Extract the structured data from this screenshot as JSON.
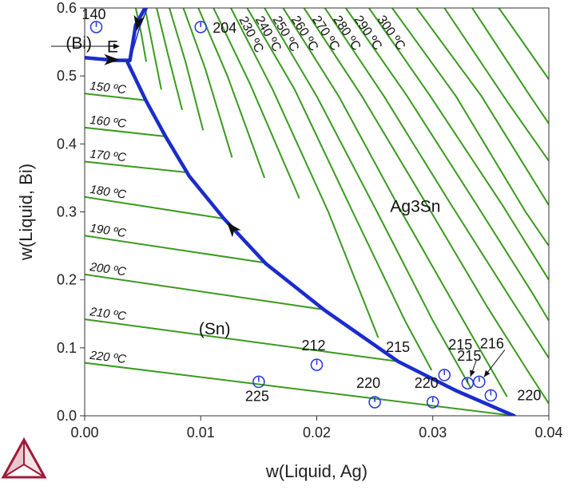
{
  "chart_data": {
    "type": "line",
    "title": "",
    "xlabel": "w(Liquid, Ag)",
    "ylabel": "w(Liquid, Bi)",
    "xlim": [
      0,
      0.04
    ],
    "ylim": [
      0,
      0.6
    ],
    "x_ticks": [
      "0.00",
      "0.01",
      "0.02",
      "0.03",
      "0.04"
    ],
    "y_ticks": [
      "0.0",
      "0.1",
      "0.2",
      "0.3",
      "0.4",
      "0.5",
      "0.6"
    ],
    "grid": false,
    "colors": {
      "isotherm": "#3a9a1e",
      "boundary": "#1a2ccc",
      "point": "#2233dd",
      "logo": "#9e1b3a"
    },
    "regions": [
      {
        "label": "(Bi)",
        "x": -0.0005,
        "y": 0.54
      },
      {
        "label": "E",
        "x": 0.0024,
        "y": 0.535
      },
      {
        "label": "Ag3Sn",
        "x": 0.0285,
        "y": 0.3
      },
      {
        "label": "(Sn)",
        "x": 0.0112,
        "y": 0.12
      }
    ],
    "low_isotherms": [
      {
        "label": "150 ºC",
        "points": [
          [
            0.0,
            0.474
          ],
          [
            0.0053,
            0.464
          ]
        ]
      },
      {
        "label": "160 ºC",
        "points": [
          [
            0.0,
            0.424
          ],
          [
            0.007,
            0.411
          ]
        ]
      },
      {
        "label": "170 ºC",
        "points": [
          [
            0.0,
            0.374
          ],
          [
            0.0089,
            0.358
          ]
        ]
      },
      {
        "label": "180 ºC",
        "points": [
          [
            0.0,
            0.322
          ],
          [
            0.012,
            0.29
          ]
        ]
      },
      {
        "label": "190 ºC",
        "points": [
          [
            0.0,
            0.265
          ],
          [
            0.0156,
            0.225
          ]
        ]
      },
      {
        "label": "200 ºC",
        "points": [
          [
            0.0,
            0.208
          ],
          [
            0.0207,
            0.156
          ]
        ]
      },
      {
        "label": "210 ºC",
        "points": [
          [
            0.0,
            0.142
          ],
          [
            0.027,
            0.08
          ]
        ]
      },
      {
        "label": "220 ºC",
        "points": [
          [
            0.0,
            0.078
          ],
          [
            0.037,
            0.0
          ]
        ]
      }
    ],
    "ag3sn_isotherms": [
      {
        "label": "",
        "points": [
          [
            0.0044,
            0.6
          ],
          [
            0.0049,
            0.56
          ],
          [
            0.0053,
            0.521
          ]
        ]
      },
      {
        "label": "",
        "points": [
          [
            0.0052,
            0.6
          ],
          [
            0.0059,
            0.54
          ],
          [
            0.0066,
            0.48
          ]
        ]
      },
      {
        "label": "",
        "points": [
          [
            0.0062,
            0.6
          ],
          [
            0.0072,
            0.53
          ],
          [
            0.0084,
            0.45
          ]
        ]
      },
      {
        "label": "",
        "points": [
          [
            0.0073,
            0.6
          ],
          [
            0.0087,
            0.52
          ],
          [
            0.0102,
            0.42
          ]
        ]
      },
      {
        "label": "",
        "points": [
          [
            0.0085,
            0.6
          ],
          [
            0.0104,
            0.51
          ],
          [
            0.0127,
            0.38
          ]
        ]
      },
      {
        "label": "",
        "points": [
          [
            0.0098,
            0.6
          ],
          [
            0.0123,
            0.5
          ],
          [
            0.0155,
            0.35
          ]
        ]
      },
      {
        "label": "",
        "points": [
          [
            0.0111,
            0.6
          ],
          [
            0.0142,
            0.49
          ],
          [
            0.0185,
            0.32
          ]
        ]
      },
      {
        "label": "230 ºC",
        "points": [
          [
            0.0126,
            0.6
          ],
          [
            0.0162,
            0.48
          ],
          [
            0.021,
            0.3
          ],
          [
            0.0253,
            0.115
          ]
        ]
      },
      {
        "label": "240 ºC",
        "points": [
          [
            0.014,
            0.6
          ],
          [
            0.0181,
            0.48
          ],
          [
            0.0231,
            0.3
          ],
          [
            0.0276,
            0.14
          ],
          [
            0.0299,
            0.067
          ]
        ]
      },
      {
        "label": "250 ºC",
        "points": [
          [
            0.0155,
            0.6
          ],
          [
            0.02,
            0.47
          ],
          [
            0.0252,
            0.3
          ],
          [
            0.03,
            0.14
          ],
          [
            0.0333,
            0.04
          ]
        ]
      },
      {
        "label": "260 ºC",
        "points": [
          [
            0.0171,
            0.6
          ],
          [
            0.0219,
            0.47
          ],
          [
            0.0273,
            0.3
          ],
          [
            0.0323,
            0.15
          ],
          [
            0.0355,
            0.055
          ],
          [
            0.0364,
            0.028
          ]
        ]
      },
      {
        "label": "270 ºC",
        "points": [
          [
            0.0189,
            0.6
          ],
          [
            0.0239,
            0.47
          ],
          [
            0.0295,
            0.31
          ],
          [
            0.0347,
            0.16
          ],
          [
            0.0384,
            0.06
          ],
          [
            0.04,
            0.018
          ]
        ]
      },
      {
        "label": "280 ºC",
        "points": [
          [
            0.0207,
            0.6
          ],
          [
            0.0258,
            0.47
          ],
          [
            0.0316,
            0.31
          ],
          [
            0.0368,
            0.17
          ],
          [
            0.04,
            0.085
          ]
        ]
      },
      {
        "label": "290 ºC",
        "points": [
          [
            0.0225,
            0.6
          ],
          [
            0.0278,
            0.47
          ],
          [
            0.0338,
            0.31
          ],
          [
            0.0386,
            0.18
          ],
          [
            0.04,
            0.14
          ]
        ]
      },
      {
        "label": "300 ºC",
        "points": [
          [
            0.0245,
            0.6
          ],
          [
            0.0298,
            0.47
          ],
          [
            0.036,
            0.31
          ],
          [
            0.04,
            0.2
          ]
        ]
      },
      {
        "label": "",
        "points": [
          [
            0.0265,
            0.6
          ],
          [
            0.032,
            0.47
          ],
          [
            0.038,
            0.3
          ],
          [
            0.04,
            0.25
          ]
        ]
      },
      {
        "label": "",
        "points": [
          [
            0.0286,
            0.6
          ],
          [
            0.0342,
            0.47
          ],
          [
            0.04,
            0.31
          ]
        ]
      },
      {
        "label": "",
        "points": [
          [
            0.031,
            0.6
          ],
          [
            0.0365,
            0.46
          ],
          [
            0.04,
            0.375
          ]
        ]
      },
      {
        "label": "",
        "points": [
          [
            0.0334,
            0.6
          ],
          [
            0.0384,
            0.47
          ],
          [
            0.04,
            0.43
          ]
        ]
      },
      {
        "label": "",
        "points": [
          [
            0.0357,
            0.6
          ],
          [
            0.04,
            0.495
          ]
        ]
      }
    ],
    "boundaries": [
      {
        "name": "L/(Bi)+(Sn)",
        "points": [
          [
            0.0,
            0.527
          ],
          [
            0.0025,
            0.523
          ],
          [
            0.0039,
            0.523
          ]
        ]
      },
      {
        "name": "L/(Bi)+Ag3Sn",
        "points": [
          [
            0.0039,
            0.523
          ],
          [
            0.0044,
            0.575
          ],
          [
            0.0052,
            0.6
          ]
        ]
      },
      {
        "name": "L/(Sn)+Ag3Sn",
        "points": [
          [
            0.0037,
            0.52
          ],
          [
            0.0053,
            0.463
          ],
          [
            0.007,
            0.41
          ],
          [
            0.009,
            0.353
          ],
          [
            0.012,
            0.29
          ],
          [
            0.0156,
            0.224
          ],
          [
            0.0207,
            0.155
          ],
          [
            0.027,
            0.08
          ],
          [
            0.032,
            0.037
          ],
          [
            0.037,
            0.0
          ]
        ]
      }
    ],
    "boundary_thin": [
      [
        0.0039,
        0.523
      ],
      [
        0.0047,
        0.57
      ],
      [
        0.0054,
        0.6
      ]
    ],
    "arrows": [
      {
        "x": 0.0023,
        "y": 0.524,
        "dir": "right"
      },
      {
        "x": 0.0046,
        "y": 0.578,
        "dir": "down"
      },
      {
        "x": 0.0127,
        "y": 0.276,
        "dir": "up-left"
      }
    ],
    "points": [
      {
        "label": "140",
        "x": 0.001,
        "y": 0.572
      },
      {
        "label": "204",
        "x": 0.01,
        "y": 0.572
      },
      {
        "label": "225",
        "x": 0.015,
        "y": 0.05
      },
      {
        "label": "212",
        "x": 0.02,
        "y": 0.075
      },
      {
        "label": "220",
        "x": 0.025,
        "y": 0.02
      },
      {
        "label": "220",
        "x": 0.03,
        "y": 0.02
      },
      {
        "label": "215",
        "x": 0.031,
        "y": 0.06
      },
      {
        "label": "215",
        "x": 0.033,
        "y": 0.048
      },
      {
        "label": "216",
        "x": 0.034,
        "y": 0.05
      },
      {
        "label": "220",
        "x": 0.035,
        "y": 0.03
      }
    ],
    "side_labels": [
      {
        "text": "215",
        "x": 0.027,
        "y": 0.094
      }
    ]
  }
}
